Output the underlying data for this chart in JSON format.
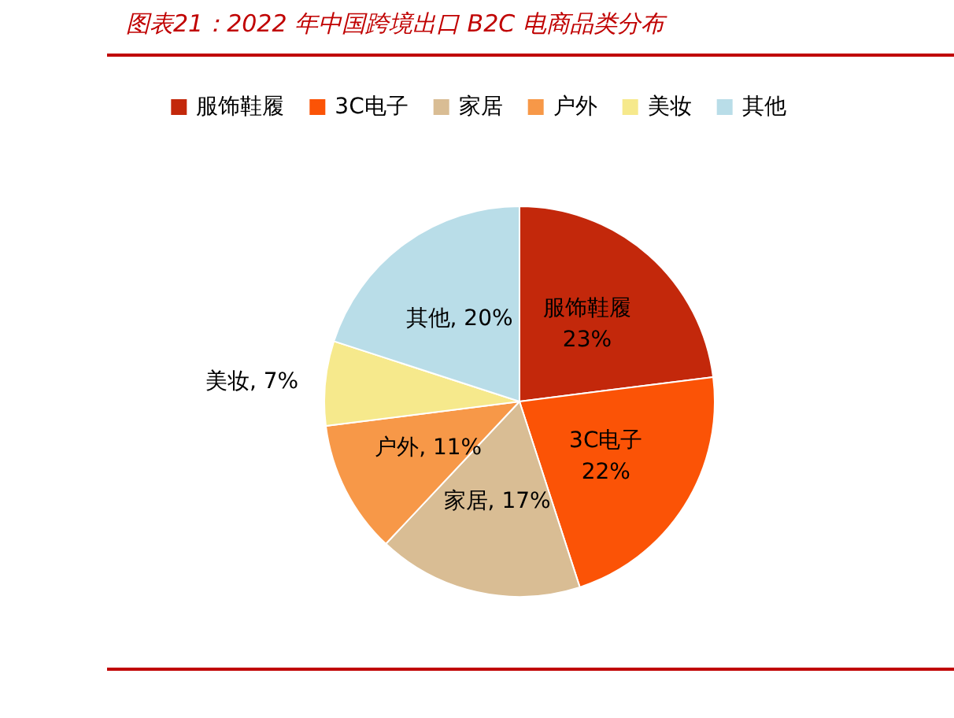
{
  "chart_data": {
    "type": "pie",
    "title": "图表21：2022 年中国跨境出口 B2C 电商品类分布",
    "categories": [
      "服饰鞋履",
      "3C电子",
      "家居",
      "户外",
      "美妆",
      "其他"
    ],
    "values": [
      23,
      22,
      17,
      11,
      7,
      20
    ],
    "colors": [
      "#c3280b",
      "#fb5306",
      "#d9bd94",
      "#f79848",
      "#f6e98c",
      "#b9dde8"
    ],
    "value_labels": [
      "23%",
      "22%",
      ", 17%",
      ", 11%",
      ", 7%",
      ", 20%"
    ],
    "legend": "top"
  }
}
